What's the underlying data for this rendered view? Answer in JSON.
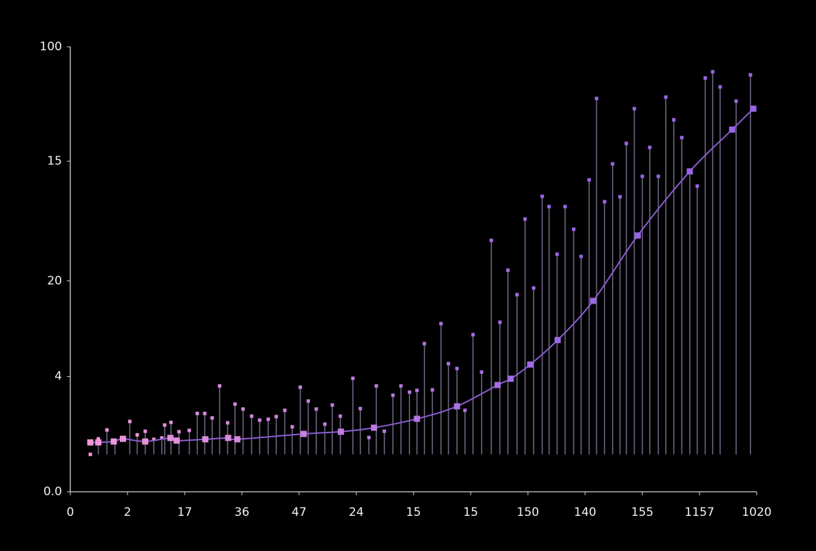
{
  "chart_data": {
    "type": "line",
    "xlim": [
      0,
      12
    ],
    "ylim": [
      0,
      100
    ],
    "xticks": [
      0,
      {
        "value": 1,
        "label": "2"
      },
      {
        "value": 2,
        "label": "17"
      },
      {
        "value": 3,
        "label": "36"
      },
      {
        "value": 4,
        "label": "47"
      },
      {
        "value": 5,
        "label": "24"
      },
      {
        "value": 6,
        "label": "15"
      },
      {
        "value": 7,
        "label": "15"
      },
      {
        "value": 8,
        "label": "150"
      },
      {
        "value": 9,
        "label": "140"
      },
      {
        "value": 10,
        "label": "155"
      },
      {
        "value": 11,
        "label": "1157"
      },
      {
        "value": 12,
        "label": "1020"
      }
    ],
    "yticks": [
      {
        "value": 0,
        "label": "0.0"
      },
      {
        "value": 25.9,
        "label": "4"
      },
      {
        "value": 47.4,
        "label": "20"
      },
      {
        "value": 74.3,
        "label": "15"
      },
      100
    ],
    "gradient": [
      "#f59ad8",
      "#9a66e6"
    ],
    "series": [
      {
        "type": "stem",
        "color": "#6c6684",
        "base": 8.4,
        "x": [
          0.35,
          0.49,
          0.64,
          0.78,
          1.04,
          1.17,
          1.31,
          1.46,
          1.6,
          1.65,
          1.76,
          1.9,
          2.08,
          2.22,
          2.35,
          2.48,
          2.61,
          2.75,
          2.88,
          3.02,
          3.17,
          3.31,
          3.46,
          3.6,
          3.75,
          3.88,
          4.02,
          4.16,
          4.3,
          4.45,
          4.58,
          4.72,
          4.94,
          5.07,
          5.22,
          5.35,
          5.49,
          5.64,
          5.78,
          5.93,
          6.06,
          6.19,
          6.33,
          6.48,
          6.61,
          6.76,
          6.9,
          7.04,
          7.19,
          7.36,
          7.51,
          7.65,
          7.81,
          7.95,
          8.1,
          8.25,
          8.37,
          8.51,
          8.65,
          8.8,
          8.93,
          9.07,
          9.2,
          9.34,
          9.48,
          9.61,
          9.72,
          9.86,
          10.0,
          10.13,
          10.28,
          10.41,
          10.55,
          10.69,
          10.83,
          10.96,
          11.1,
          11.23,
          11.36,
          11.64,
          11.89
        ],
        "values": [
          8.4,
          11.9,
          13.9,
          11.3,
          15.8,
          12.8,
          13.6,
          11.8,
          12.1,
          15.0,
          15.6,
          13.5,
          13.8,
          17.6,
          17.6,
          16.6,
          23.8,
          15.5,
          19.7,
          18.6,
          17.0,
          16.1,
          16.3,
          16.9,
          18.3,
          14.6,
          23.5,
          20.4,
          18.6,
          15.2,
          19.5,
          17.0,
          25.5,
          18.7,
          12.2,
          23.8,
          13.6,
          21.7,
          23.8,
          22.4,
          22.8,
          33.3,
          22.9,
          37.8,
          28.8,
          27.7,
          18.3,
          35.3,
          26.9,
          56.5,
          38.1,
          49.8,
          44.3,
          61.3,
          45.8,
          66.4,
          64.1,
          53.4,
          64.1,
          59.0,
          52.9,
          70.1,
          88.4,
          65.2,
          73.7,
          66.3,
          78.3,
          86.1,
          70.9,
          77.4,
          70.9,
          88.7,
          83.6,
          79.6,
          72.1,
          68.7,
          93.0,
          94.4,
          91.0,
          87.8,
          93.7
        ]
      },
      {
        "type": "curve",
        "color": "#8c5ed2",
        "x": [
          0.35,
          0.49,
          0.76,
          0.92,
          1.31,
          1.75,
          1.86,
          2.36,
          2.76,
          2.92,
          4.08,
          4.73,
          5.31,
          6.06,
          6.76,
          7.47,
          7.7,
          8.04,
          8.52,
          9.14,
          9.92,
          10.83,
          11.57,
          11.94
        ],
        "values": [
          11.1,
          11.1,
          11.3,
          11.9,
          11.3,
          12.1,
          11.5,
          11.8,
          12.1,
          11.8,
          13.0,
          13.5,
          14.4,
          16.4,
          19.2,
          24.0,
          25.4,
          28.6,
          34.1,
          42.9,
          57.6,
          72.0,
          81.4,
          86.1
        ]
      }
    ]
  }
}
